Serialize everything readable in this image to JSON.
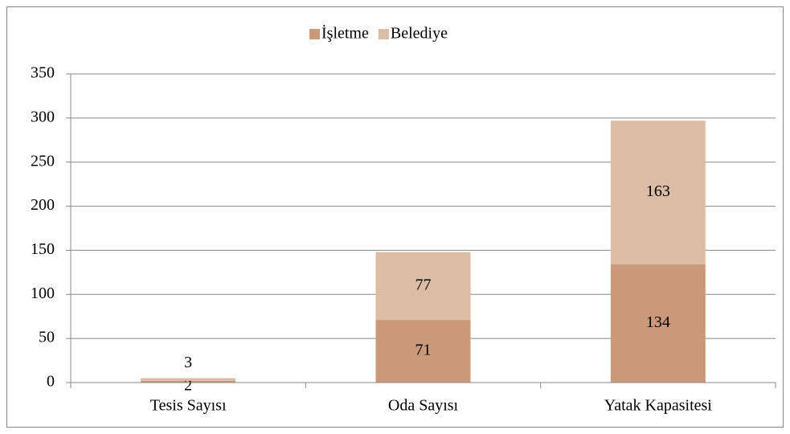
{
  "chart_data": {
    "type": "stacked_bar",
    "categories": [
      "Tesis Sayısı",
      "Oda Sayısı",
      "Yatak Kapasitesi"
    ],
    "series": [
      {
        "name": "İşletme",
        "color": "#c9997a",
        "values": [
          2,
          71,
          134
        ]
      },
      {
        "name": "Belediye",
        "color": "#dbbda6",
        "values": [
          3,
          77,
          163
        ]
      }
    ],
    "ylim": [
      0,
      350
    ],
    "yticks": [
      0,
      50,
      100,
      150,
      200,
      250,
      300,
      350
    ],
    "grid": true,
    "legend": "top",
    "data_labels": true
  }
}
